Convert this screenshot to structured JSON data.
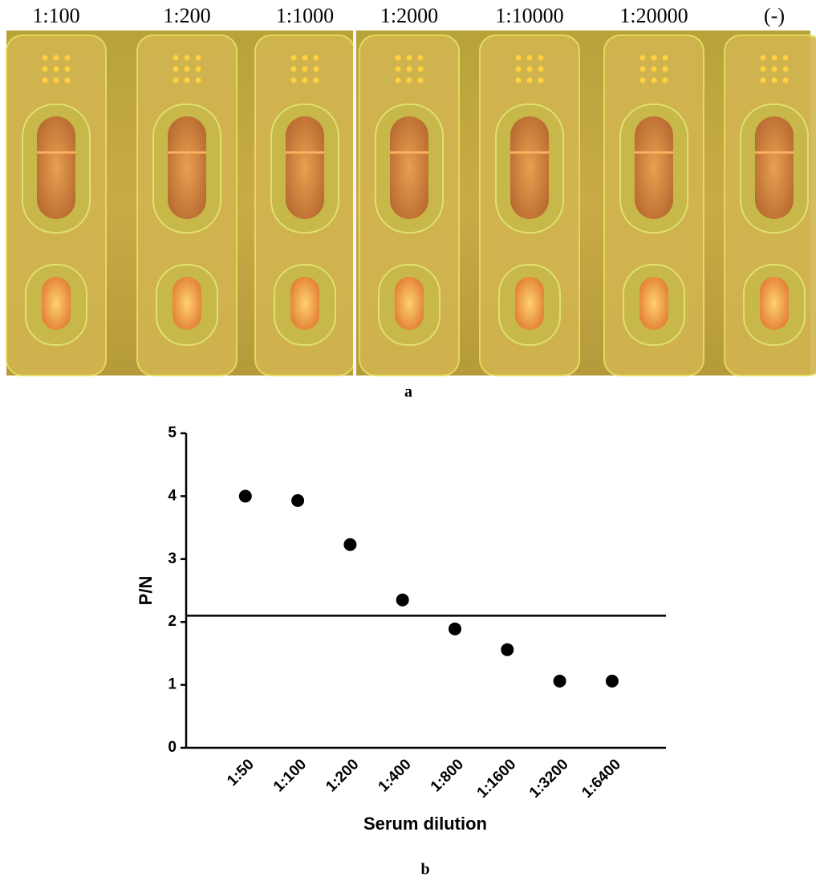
{
  "panel_a": {
    "labels": [
      "1:100",
      "1:200",
      "1:1000",
      "1:2000",
      "1:10000",
      "1:20000",
      "(-)"
    ],
    "caption": "a"
  },
  "chart_data": {
    "type": "scatter",
    "caption": "b",
    "x_label": "Serum dilution",
    "y_label": "P/N",
    "categories": [
      "1:50",
      "1:100",
      "1:200",
      "1:400",
      "1:800",
      "1:1600",
      "1:3200",
      "1:6400"
    ],
    "values": [
      4.0,
      3.93,
      3.23,
      2.35,
      1.89,
      1.56,
      1.06,
      1.06
    ],
    "threshold": 2.1,
    "color": "#000000",
    "ylim": [
      0,
      5
    ],
    "yticks": [
      0,
      1,
      2,
      3,
      4,
      5
    ]
  }
}
